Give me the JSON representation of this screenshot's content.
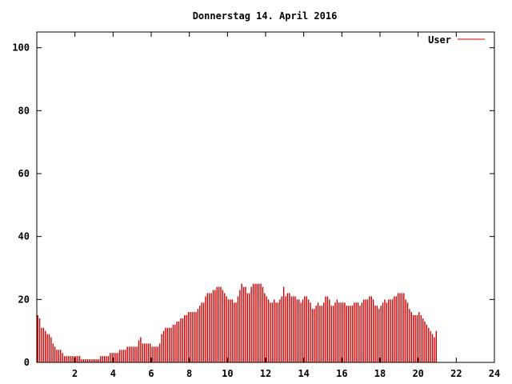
{
  "chart_data": {
    "type": "bar",
    "title": "Donnerstag 14. April 2016",
    "xlabel": "",
    "ylabel": "",
    "xlim": [
      0,
      24
    ],
    "ylim": [
      0,
      105
    ],
    "x_ticks": [
      2,
      4,
      6,
      8,
      10,
      12,
      14,
      16,
      18,
      20,
      22,
      24
    ],
    "y_ticks": [
      0,
      20,
      40,
      60,
      80,
      100
    ],
    "grid": false,
    "legend_position": "top-right",
    "colors": {
      "series": "#cc0000",
      "axis": "#000000",
      "background": "#ffffff"
    },
    "series": [
      {
        "name": "User",
        "bin_hours": 0.1,
        "values": [
          15,
          14,
          11,
          11,
          10,
          9,
          9,
          8,
          6,
          5,
          4,
          4,
          4,
          3,
          2,
          2,
          2,
          2,
          2,
          2,
          2,
          2,
          2,
          1,
          1,
          1,
          1,
          1,
          1,
          1,
          1,
          1,
          1,
          2,
          2,
          2,
          2,
          2,
          3,
          3,
          3,
          3,
          3,
          4,
          4,
          4,
          4,
          5,
          5,
          5,
          5,
          5,
          5,
          7,
          8,
          6,
          6,
          6,
          6,
          6,
          5,
          5,
          5,
          5,
          6,
          9,
          10,
          11,
          11,
          11,
          11,
          12,
          12,
          13,
          13,
          14,
          14,
          15,
          15,
          16,
          16,
          16,
          16,
          16,
          17,
          18,
          19,
          19,
          21,
          22,
          22,
          22,
          23,
          23,
          24,
          24,
          24,
          23,
          22,
          21,
          20,
          20,
          20,
          19,
          19,
          21,
          23,
          25,
          24,
          24,
          22,
          22,
          24,
          25,
          25,
          25,
          25,
          25,
          24,
          22,
          21,
          20,
          19,
          19,
          20,
          19,
          19,
          20,
          21,
          24,
          21,
          22,
          22,
          21,
          21,
          21,
          20,
          20,
          19,
          20,
          21,
          21,
          20,
          19,
          17,
          17,
          18,
          19,
          18,
          18,
          19,
          21,
          21,
          20,
          18,
          18,
          19,
          20,
          19,
          19,
          19,
          19,
          18,
          18,
          18,
          18,
          19,
          19,
          19,
          18,
          19,
          20,
          20,
          20,
          21,
          21,
          20,
          18,
          18,
          17,
          18,
          19,
          20,
          19,
          20,
          20,
          20,
          21,
          21,
          22,
          22,
          22,
          22,
          20,
          19,
          17,
          16,
          15,
          15,
          15,
          16,
          15,
          14,
          13,
          12,
          11,
          10,
          9,
          8,
          10
        ]
      }
    ]
  }
}
